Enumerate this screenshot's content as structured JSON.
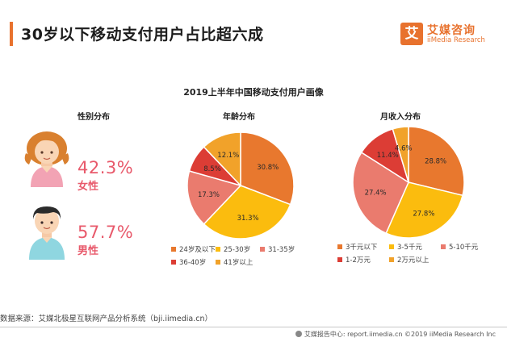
{
  "header": {
    "title": "30岁以下移动支付用户占比超六成"
  },
  "logo": {
    "mark": "艾",
    "name_cn": "艾媒咨询",
    "name_en": "iiMedia Research"
  },
  "subtitle": "2019上半年中国移动支付用户画像",
  "gender": {
    "title": "性别分布",
    "female": {
      "pct": "42.3%",
      "label": "女性"
    },
    "male": {
      "pct": "57.7%",
      "label": "男性"
    }
  },
  "colors": {
    "orange": "#e8782e",
    "yellow": "#fbbc0e",
    "pink": "#ea7b6e",
    "red": "#dc3d35",
    "gold": "#f1a22a",
    "accent": "#e8596b"
  },
  "chart_data": [
    {
      "type": "pie",
      "title": "年龄分布",
      "categories": [
        "24岁及以下",
        "25-30岁",
        "31-35岁",
        "36-40岁",
        "41岁以上"
      ],
      "values": [
        30.8,
        31.3,
        17.3,
        8.5,
        12.1
      ],
      "labels": [
        "30.8%",
        "31.3%",
        "17.3%",
        "8.5%",
        "12.1%"
      ],
      "colors": [
        "#e8782e",
        "#fbbc0e",
        "#ea7b6e",
        "#dc3d35",
        "#f1a22a"
      ],
      "legend_position": "bottom"
    },
    {
      "type": "pie",
      "title": "月收入分布",
      "categories": [
        "3千元以下",
        "3-5千元",
        "5-10千元",
        "1-2万元",
        "2万元以上"
      ],
      "values": [
        28.8,
        27.8,
        27.4,
        11.4,
        4.6
      ],
      "labels": [
        "28.8%",
        "27.8%",
        "27.4%",
        "11.4%",
        "4.6%"
      ],
      "colors": [
        "#e8782e",
        "#fbbc0e",
        "#ea7b6e",
        "#dc3d35",
        "#f1a22a"
      ],
      "legend_position": "bottom"
    }
  ],
  "source": "数据来源：艾媒北极星互联网产品分析系统（bji.iimedia.cn）",
  "footer": {
    "text": "艾媒报告中心: report.iimedia.cn   ©2019  iiMedia Research  Inc"
  }
}
